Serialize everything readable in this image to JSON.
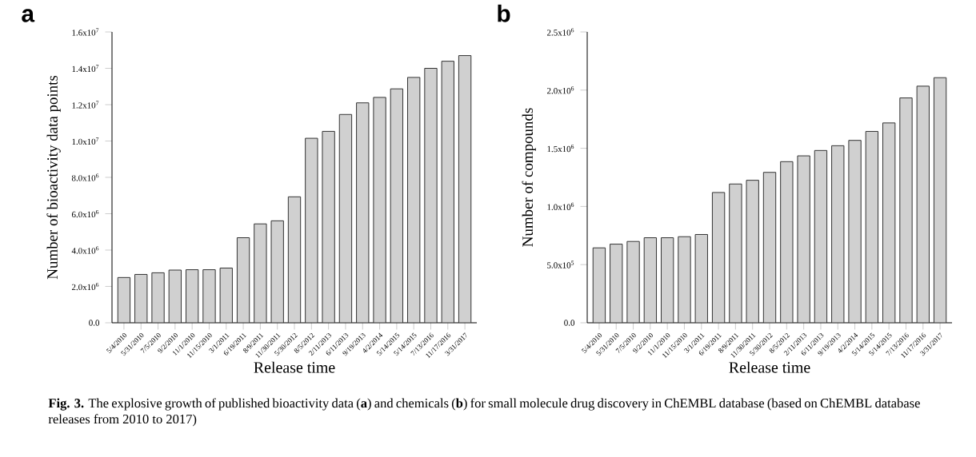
{
  "chart_data": [
    {
      "type": "bar",
      "title": "a",
      "xlabel": "Release time",
      "ylabel": "Number of bioactivity data points",
      "color": "#d0d0d0",
      "categories": [
        "5/4/2010",
        "5/31/2010",
        "7/5/2010",
        "9/2/2010",
        "11/1/2010",
        "11/15/2010",
        "3/1/2011",
        "6/19/2011",
        "8/9/2011",
        "11/30/2011",
        "5/30/2012",
        "8/5/2012",
        "2/11/2013",
        "6/11/2013",
        "9/19/2013",
        "4/2/2014",
        "5/14/2015",
        "5/14/2015",
        "7/13/2016",
        "11/17/2016",
        "3/31/2017"
      ],
      "values": [
        2490000,
        2660000,
        2750000,
        2900000,
        2920000,
        2920000,
        3010000,
        4680000,
        5440000,
        5610000,
        6930000,
        10150000,
        10530000,
        11460000,
        12100000,
        12400000,
        12870000,
        13500000,
        14000000,
        14390000,
        14700000
      ],
      "ylim": [
        0,
        16000000
      ],
      "yticks": [
        {
          "value": 0,
          "label": "0.0"
        },
        {
          "value": 2000000,
          "label": "2.0x10$^{6}$"
        },
        {
          "value": 4000000,
          "label": "4.0x10$^{6}$"
        },
        {
          "value": 6000000,
          "label": "6.0x10$^{6}$"
        },
        {
          "value": 8000000,
          "label": "8.0x10$^{6}$"
        },
        {
          "value": 10000000,
          "label": "1.0x10$^{7}$"
        },
        {
          "value": 12000000,
          "label": "1.2x10$^{7}$"
        },
        {
          "value": 14000000,
          "label": "1.4x10$^{7}$"
        },
        {
          "value": 16000000,
          "label": "1.6x10$^{7}$"
        }
      ],
      "annotations": [
        "**Fig. 3.** The explosive growth of published bioactivity data (**a**) and chemicals (**b**) for small molecule drug discovery in ChEMBL database (based on ChEMBL database releases from 2010 to 2017)"
      ]
    },
    {
      "type": "bar",
      "title": "b",
      "xlabel": "Release time",
      "ylabel": "Number of compounds",
      "color": "#d0d0d0",
      "categories": [
        "5/4/2010",
        "5/31/2010",
        "7/5/2010",
        "9/2/2010",
        "11/1/2010",
        "11/15/2010",
        "3/1/2011",
        "6/19/2011",
        "8/9/2011",
        "11/30/2011",
        "5/30/2012",
        "8/5/2012",
        "2/11/2013",
        "6/11/2013",
        "9/19/2013",
        "4/2/2014",
        "5/14/2015",
        "5/14/2015",
        "7/13/2016",
        "11/17/2016",
        "3/31/2017"
      ],
      "values": [
        644000,
        676000,
        699000,
        731000,
        731000,
        740000,
        759000,
        1120000,
        1193000,
        1225000,
        1293000,
        1385000,
        1435000,
        1481000,
        1522000,
        1568000,
        1645000,
        1718000,
        1933000,
        2034000,
        2107000
      ],
      "ylim": [
        0,
        2500000
      ],
      "yticks": [
        {
          "value": 0,
          "label": "0.0"
        },
        {
          "value": 500000,
          "label": "5.0x10$^{5}$"
        },
        {
          "value": 1000000,
          "label": "1.0x10$^{6}$"
        },
        {
          "value": 1500000,
          "label": "1.5x10$^{6}$"
        },
        {
          "value": 2000000,
          "label": "2.0x10$^{6}$"
        },
        {
          "value": 2500000,
          "label": "2.5x10$^{6}$"
        }
      ]
    }
  ]
}
